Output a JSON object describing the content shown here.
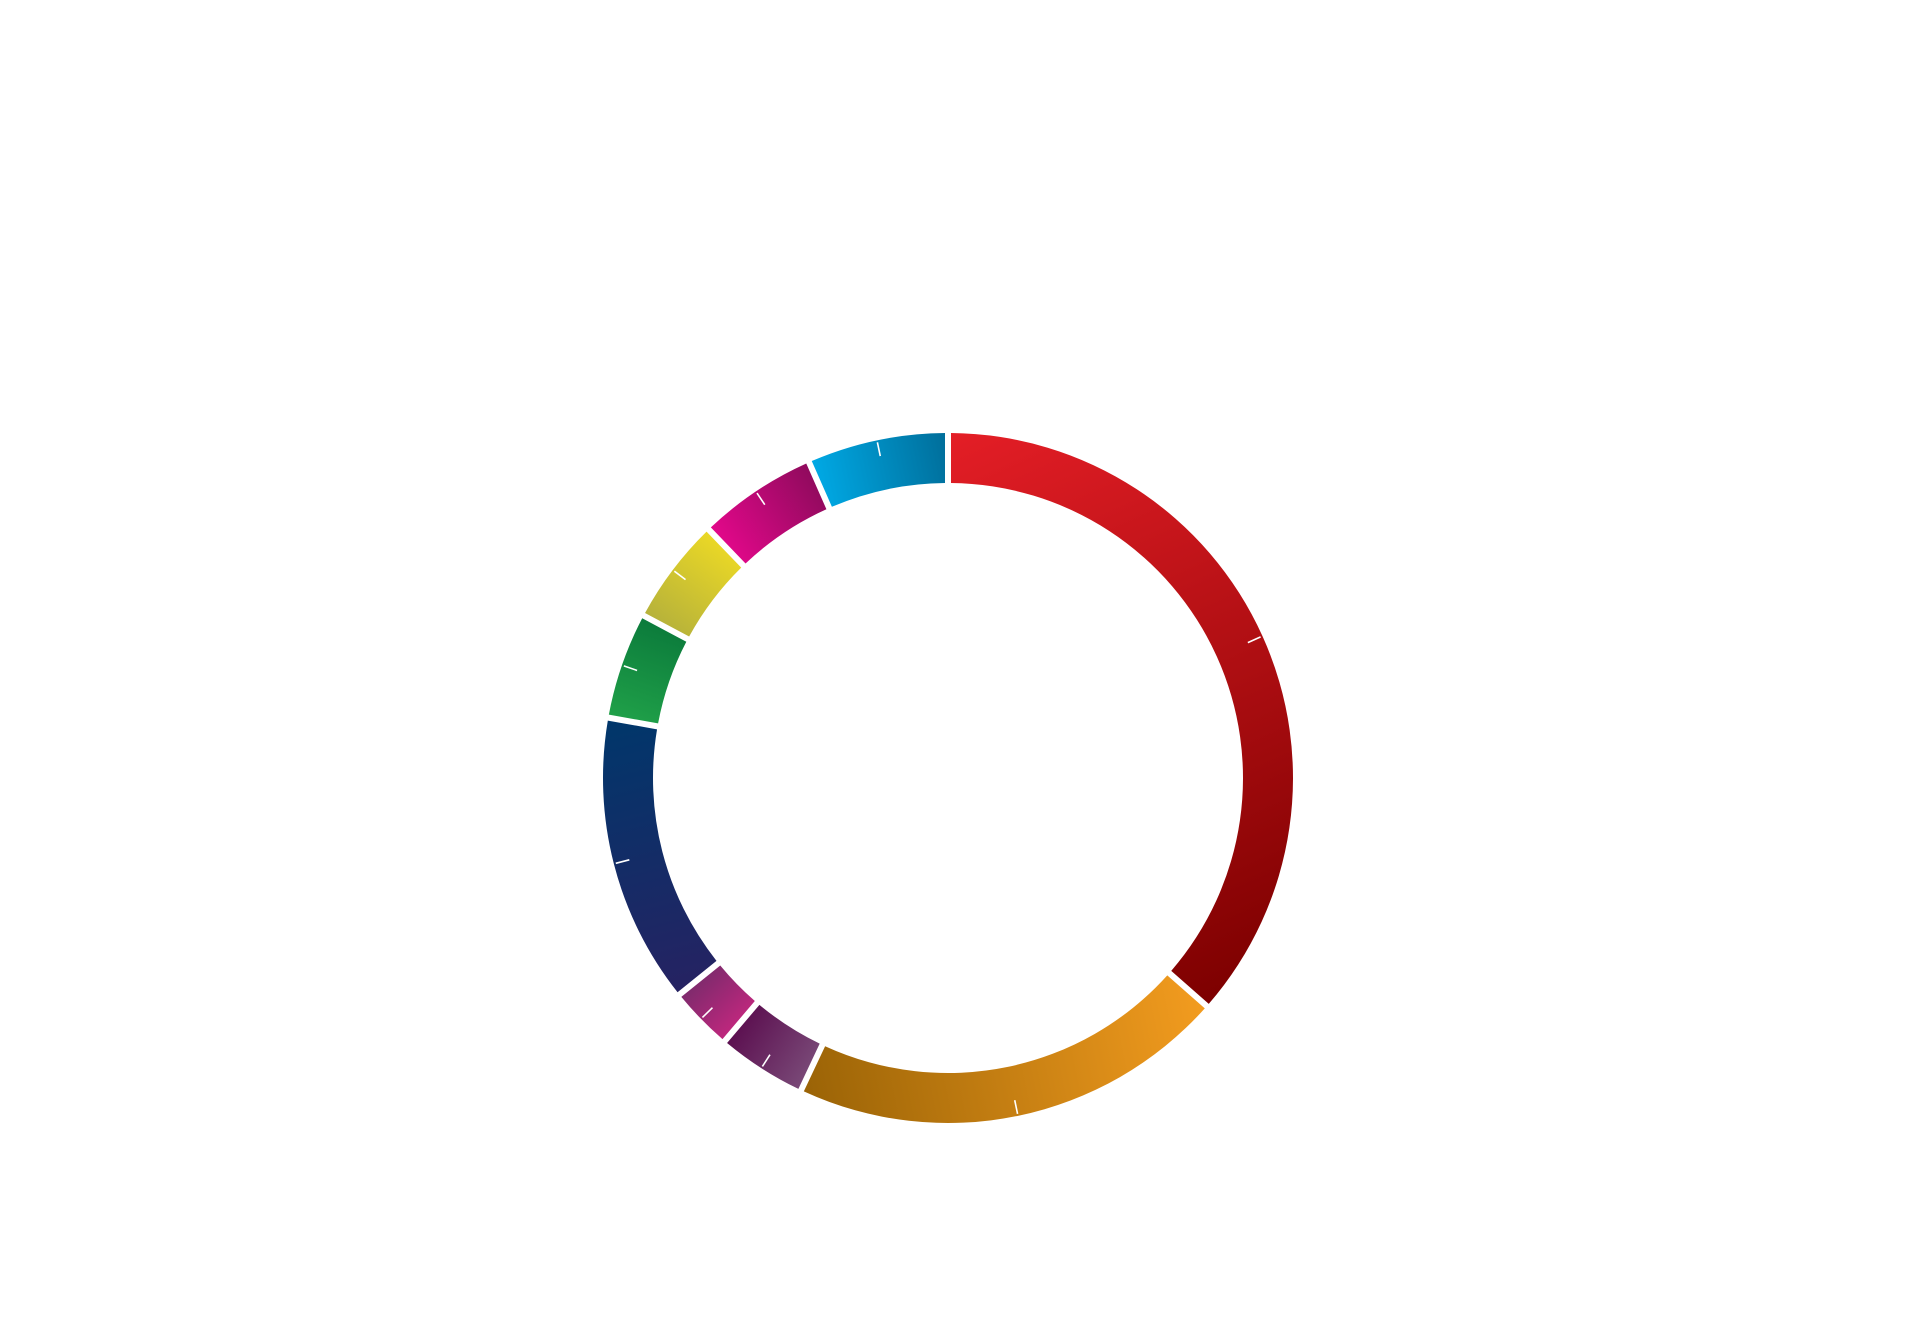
{
  "chart_data": {
    "type": "pie",
    "variant": "donut",
    "title": "",
    "legend": "none",
    "grid": false,
    "start_angle_deg": 0,
    "direction": "clockwise",
    "total": 100,
    "slices": [
      {
        "value": 36.5,
        "color_start": "#e41e26",
        "color_end": "#7d0000"
      },
      {
        "value": 20.5,
        "color_start": "#f39c1f",
        "color_end": "#9a6306"
      },
      {
        "value": 4.2,
        "color_start": "#7a4a78",
        "color_end": "#5b0e4f"
      },
      {
        "value": 3.0,
        "color_start": "#c1277e",
        "color_end": "#7c2a6c"
      },
      {
        "value": 13.6,
        "color_start": "#262262",
        "color_end": "#00376b"
      },
      {
        "value": 5.0,
        "color_start": "#20a149",
        "color_end": "#0b7a3b"
      },
      {
        "value": 5.0,
        "color_start": "#b5b13b",
        "color_end": "#ecd925"
      },
      {
        "value": 5.6,
        "color_start": "#e4088b",
        "color_end": "#8e0a5c"
      },
      {
        "value": 6.6,
        "color_start": "#00aae6",
        "color_end": "#006d99"
      }
    ]
  }
}
